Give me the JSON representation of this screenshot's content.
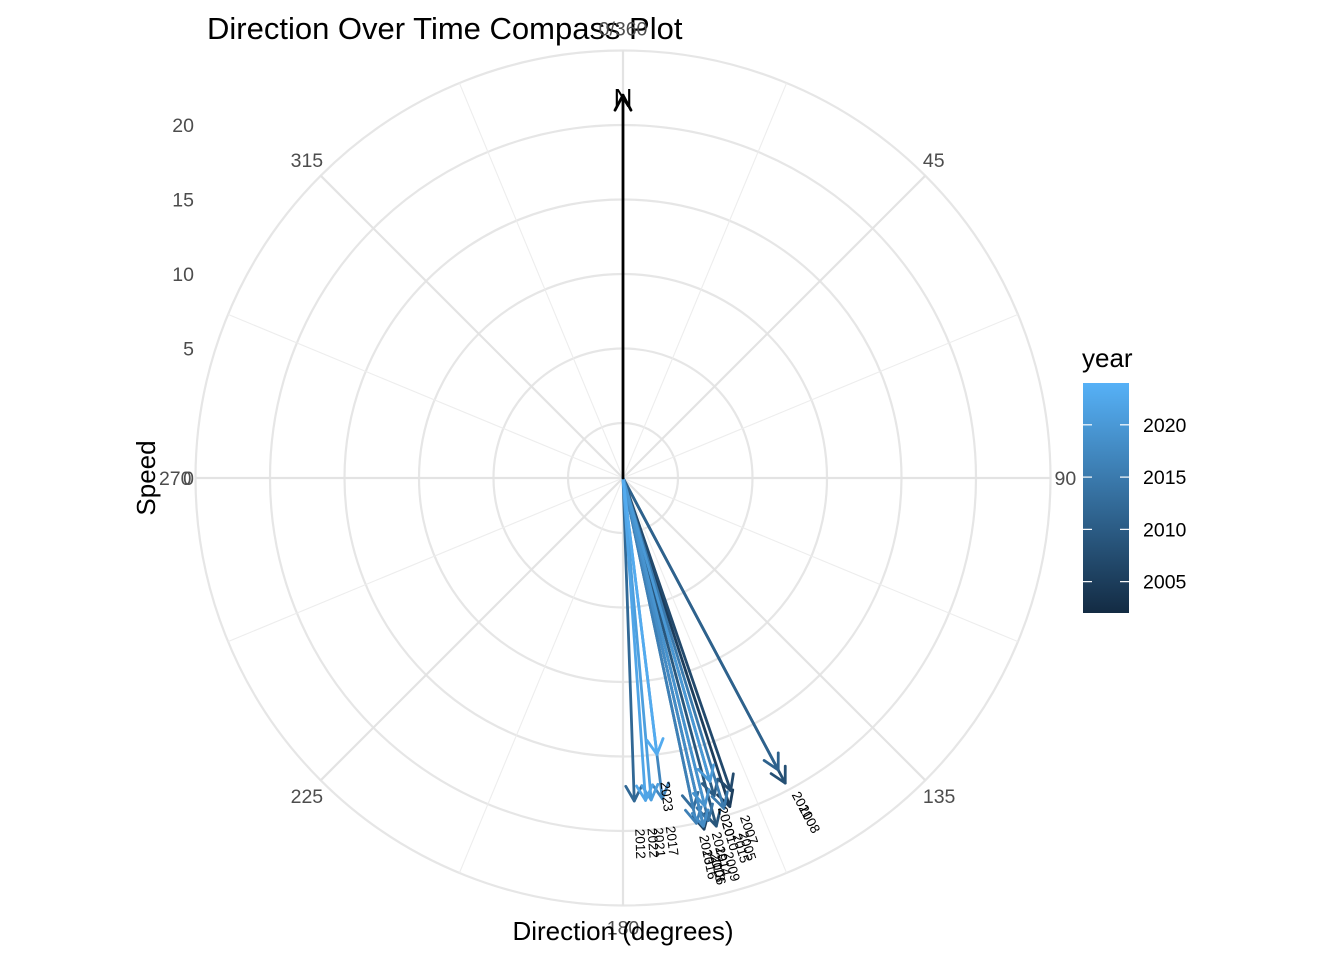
{
  "chart_data": {
    "type": "compass",
    "title": "Direction Over Time Compass Plot",
    "xlabel": "Direction (degrees)",
    "ylabel": "Speed",
    "angle_ticks": [
      "0/360",
      "45",
      "90",
      "135",
      "180",
      "225",
      "270",
      "315"
    ],
    "radial_ticks": [
      "0",
      "5",
      "10",
      "15",
      "20"
    ],
    "radial_max": 25,
    "north_label": "N",
    "north_speed": 22,
    "legend": {
      "title": "year",
      "labels": [
        "2020",
        "2015",
        "2010",
        "2005"
      ],
      "values": [
        2020,
        2015,
        2010,
        2005
      ],
      "min": 2002,
      "max": 2024,
      "color_low": "#132B43",
      "color_high": "#56B1F7",
      "placement": "right"
    },
    "series": [
      {
        "year": 2005,
        "direction": 162,
        "speed": 19.5
      },
      {
        "year": 2006,
        "direction": 167,
        "speed": 20.5
      },
      {
        "year": 2007,
        "direction": 161,
        "speed": 18.5
      },
      {
        "year": 2008,
        "direction": 152,
        "speed": 19.5
      },
      {
        "year": 2009,
        "direction": 165,
        "speed": 20.5
      },
      {
        "year": 2010,
        "direction": 164,
        "speed": 18.5
      },
      {
        "year": 2011,
        "direction": 152,
        "speed": 18.5
      },
      {
        "year": 2012,
        "direction": 178,
        "speed": 18.0
      },
      {
        "year": 2013,
        "direction": 168,
        "speed": 19.0
      },
      {
        "year": 2014,
        "direction": 166,
        "speed": 20.0
      },
      {
        "year": 2015,
        "direction": 163,
        "speed": 19.5
      },
      {
        "year": 2016,
        "direction": 168,
        "speed": 20.0
      },
      {
        "year": 2017,
        "direction": 173,
        "speed": 18.0
      },
      {
        "year": 2018,
        "direction": 167,
        "speed": 20.3
      },
      {
        "year": 2019,
        "direction": 166,
        "speed": 19.0
      },
      {
        "year": 2020,
        "direction": 164,
        "speed": 17.5
      },
      {
        "year": 2021,
        "direction": 175,
        "speed": 18.0
      },
      {
        "year": 2022,
        "direction": 176,
        "speed": 18.0
      },
      {
        "year": 2023,
        "direction": 173,
        "speed": 15.0
      }
    ]
  }
}
